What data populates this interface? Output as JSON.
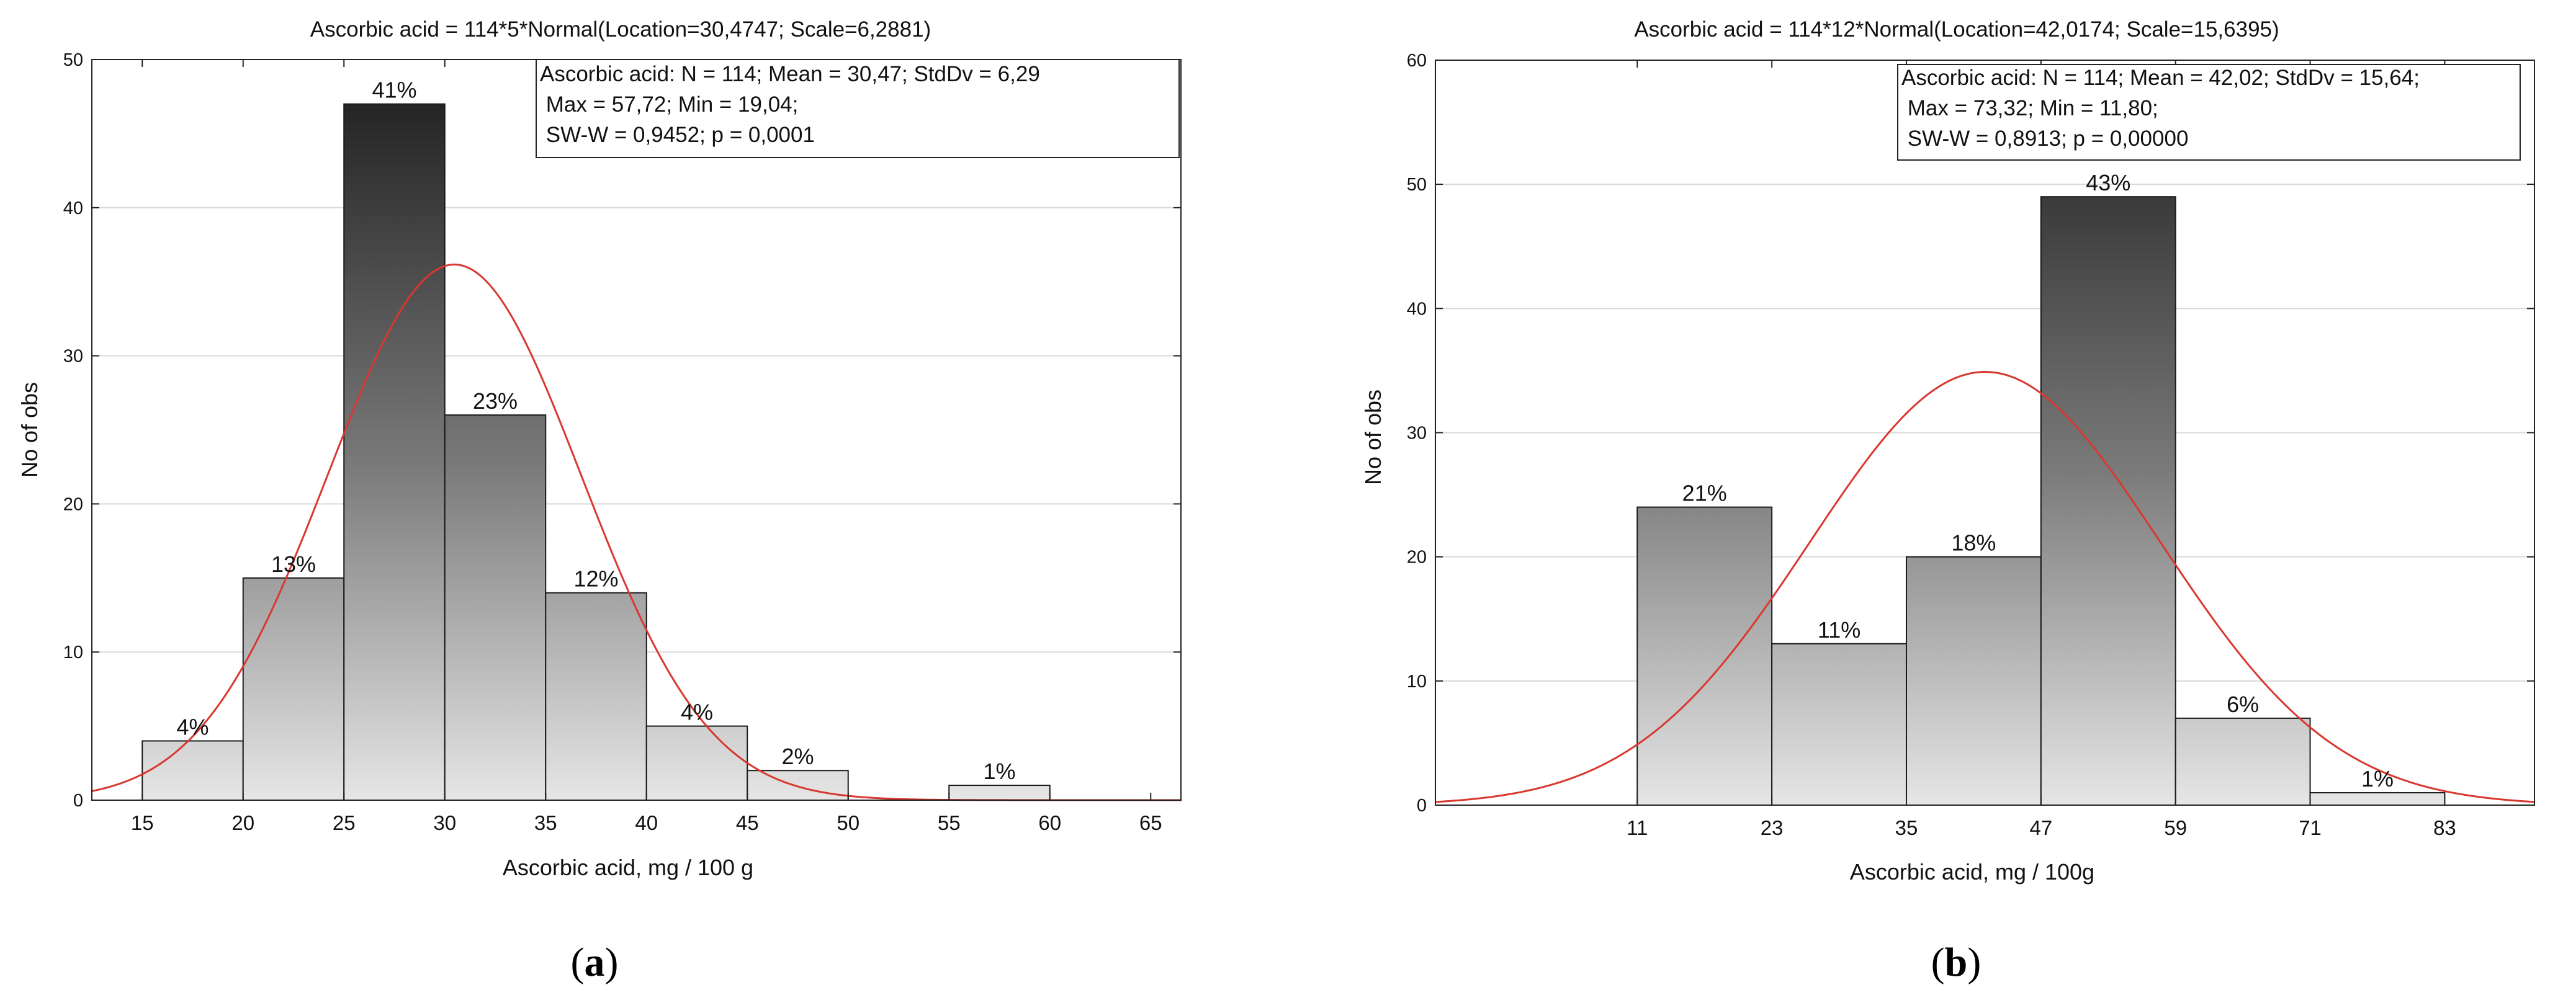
{
  "chart_data": [
    {
      "type": "bar",
      "title": "Ascorbic acid = 114*5*Normal(Location=30,4747; Scale=6,2881)",
      "xlabel": "Ascorbic acid, mg / 100 g",
      "ylabel": "No of obs",
      "xlim": [
        12.5,
        66.5
      ],
      "ylim": [
        0,
        50
      ],
      "x_ticks": [
        "15",
        "20",
        "25",
        "30",
        "35",
        "40",
        "45",
        "50",
        "55",
        "60",
        "65"
      ],
      "y_ticks": [
        "0",
        "10",
        "20",
        "30",
        "40",
        "50"
      ],
      "grid": true,
      "bins": [
        {
          "from": 15,
          "to": 20,
          "value": 4,
          "label": "4%"
        },
        {
          "from": 20,
          "to": 25,
          "value": 15,
          "label": "13%"
        },
        {
          "from": 25,
          "to": 30,
          "value": 47,
          "label": "41%"
        },
        {
          "from": 30,
          "to": 35,
          "value": 26,
          "label": "23%"
        },
        {
          "from": 35,
          "to": 40,
          "value": 14,
          "label": "12%"
        },
        {
          "from": 40,
          "to": 45,
          "value": 5,
          "label": "4%"
        },
        {
          "from": 45,
          "to": 50,
          "value": 2,
          "label": "2%"
        },
        {
          "from": 50,
          "to": 55,
          "value": 0,
          "label": ""
        },
        {
          "from": 55,
          "to": 60,
          "value": 1,
          "label": "1%"
        }
      ],
      "normal_fit": {
        "n": 114,
        "bin_width": 5,
        "location": 30.4747,
        "scale": 6.2881,
        "color": "#d9372f"
      },
      "stats_box": [
        "Ascorbic acid: N = 114; Mean = 30,47; StdDv = 6,29",
        " Max = 57,72; Min = 19,04;",
        " SW-W = 0,9452; p = 0,0001"
      ],
      "caption": "a"
    },
    {
      "type": "bar",
      "title": "Ascorbic acid = 114*12*Normal(Location=42,0174; Scale=15,6395)",
      "xlabel": "Ascorbic acid, mg / 100g",
      "ylabel": "No of obs",
      "xlim": [
        -7,
        91
      ],
      "ylim": [
        0,
        60
      ],
      "x_ticks": [
        "11",
        "23",
        "35",
        "47",
        "59",
        "71",
        "83"
      ],
      "y_ticks": [
        "0",
        "10",
        "20",
        "30",
        "40",
        "50",
        "60"
      ],
      "grid": true,
      "bins": [
        {
          "from": 11,
          "to": 23,
          "value": 24,
          "label": "21%"
        },
        {
          "from": 23,
          "to": 35,
          "value": 13,
          "label": "11%"
        },
        {
          "from": 35,
          "to": 47,
          "value": 20,
          "label": "18%"
        },
        {
          "from": 47,
          "to": 59,
          "value": 49,
          "label": "43%"
        },
        {
          "from": 59,
          "to": 71,
          "value": 7,
          "label": "6%"
        },
        {
          "from": 71,
          "to": 83,
          "value": 1,
          "label": "1%"
        }
      ],
      "normal_fit": {
        "n": 114,
        "bin_width": 12,
        "location": 42.0174,
        "scale": 15.6395,
        "color": "#d9372f"
      },
      "stats_box": [
        "Ascorbic acid: N = 114; Mean = 42,02; StdDv = 15,64;",
        " Max = 73,32; Min = 11,80;",
        " SW-W = 0,8913; p = 0,00000"
      ],
      "caption": "b"
    }
  ],
  "captions": {
    "a": "a",
    "b": "b"
  },
  "colors": {
    "grid": "#d9d9d9",
    "axis": "#222222",
    "bar_dark": "#1a1a1a",
    "bar_light": "#e6e6e6",
    "fit": "#d9372f"
  }
}
